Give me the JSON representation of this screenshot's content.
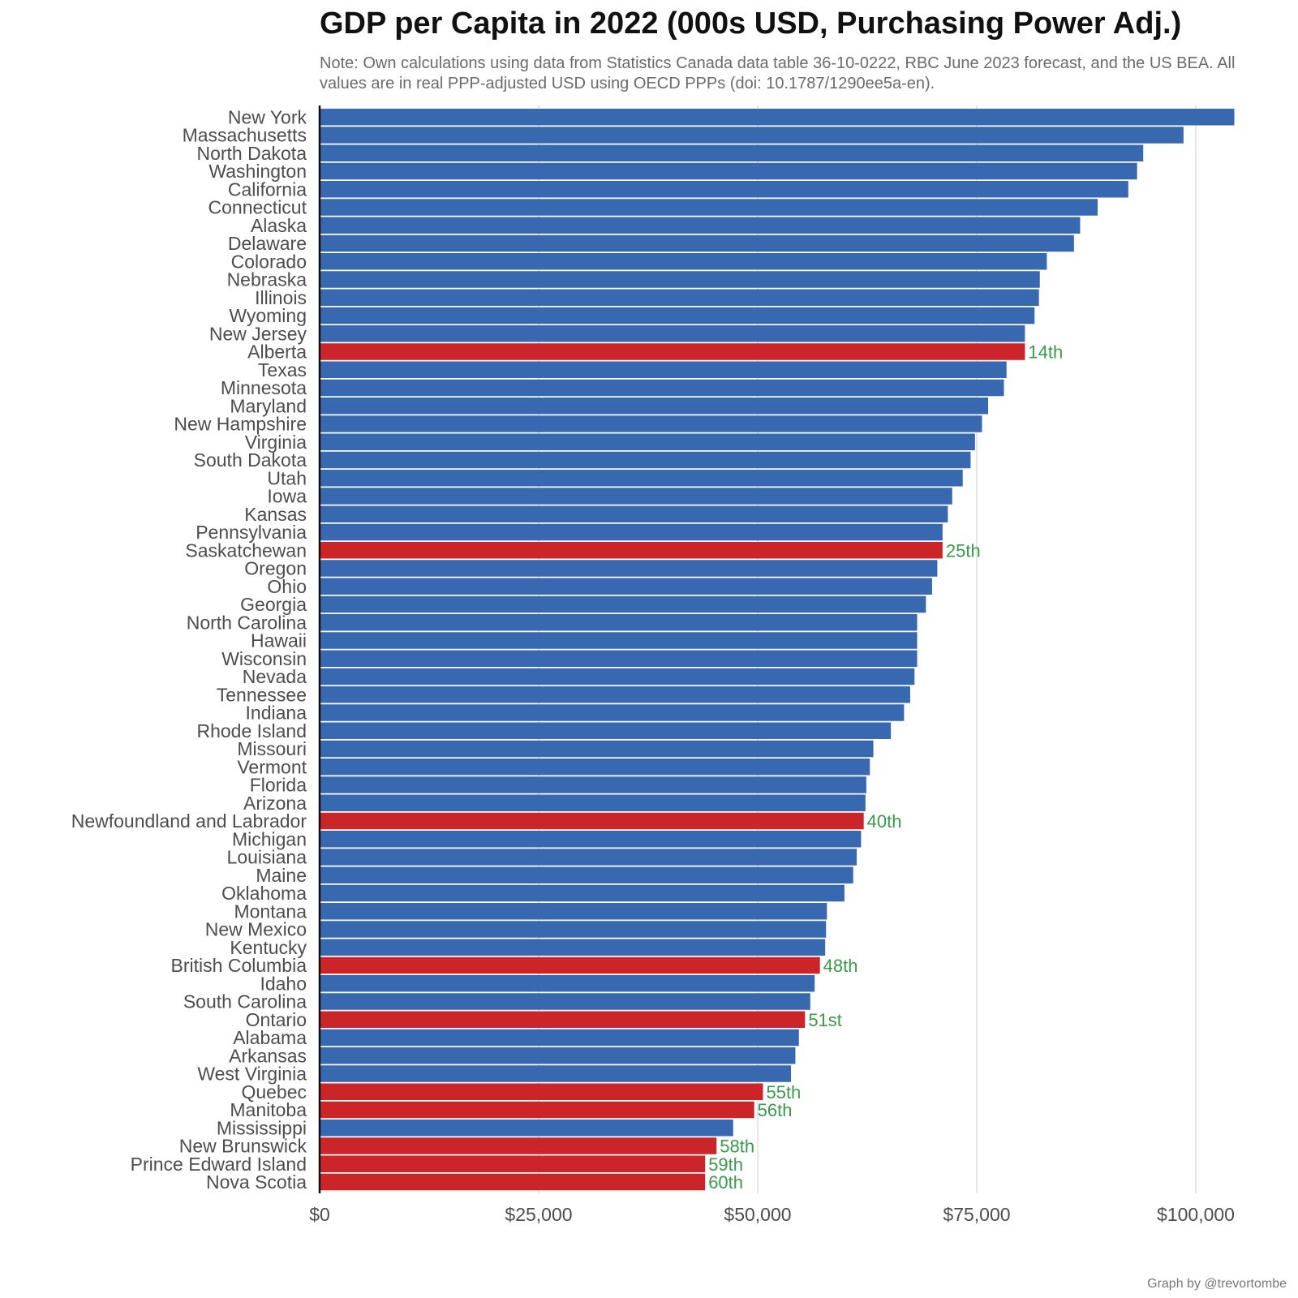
{
  "chart_data": {
    "type": "bar",
    "orientation": "horizontal",
    "title": "GDP per Capita in 2022 (000s USD, Purchasing Power Adj.)",
    "subtitle": "Note: Own calculations using data from Statistics Canada data table 36-10-0222, RBC June 2023 forecast, and the US BEA. All values are in real PPP-adjusted USD using OECD PPPs (doi: 10.1787/1290ee5a-en).",
    "credit": "Graph by @trevortombe",
    "xlim": [
      0,
      104000
    ],
    "ticks": [
      0,
      25000,
      50000,
      75000,
      100000
    ],
    "tick_labels": [
      "$0",
      "$25,000",
      "$50,000",
      "$75,000",
      "$100,000"
    ],
    "colors": {
      "us": "#3868b0",
      "canada": "#cc2529",
      "rank": "#3a9a4a"
    },
    "categories": [
      "New York",
      "Massachusetts",
      "North Dakota",
      "Washington",
      "California",
      "Connecticut",
      "Alaska",
      "Delaware",
      "Colorado",
      "Nebraska",
      "Illinois",
      "Wyoming",
      "New Jersey",
      "Alberta",
      "Texas",
      "Minnesota",
      "Maryland",
      "New Hampshire",
      "Virginia",
      "South Dakota",
      "Utah",
      "Iowa",
      "Kansas",
      "Pennsylvania",
      "Saskatchewan",
      "Oregon",
      "Ohio",
      "Georgia",
      "North Carolina",
      "Hawaii",
      "Wisconsin",
      "Nevada",
      "Tennessee",
      "Indiana",
      "Rhode Island",
      "Missouri",
      "Vermont",
      "Florida",
      "Arizona",
      "Newfoundland and Labrador",
      "Michigan",
      "Louisiana",
      "Maine",
      "Oklahoma",
      "Montana",
      "New Mexico",
      "Kentucky",
      "British Columbia",
      "Idaho",
      "South Carolina",
      "Ontario",
      "Alabama",
      "Arkansas",
      "West Virginia",
      "Quebec",
      "Manitoba",
      "Mississippi",
      "New Brunswick",
      "Prince Edward Island",
      "Nova Scotia"
    ],
    "values": [
      104400,
      98600,
      94000,
      93300,
      92300,
      88800,
      86800,
      86100,
      83000,
      82200,
      82100,
      81600,
      80500,
      80500,
      78400,
      78100,
      76300,
      75600,
      74800,
      74300,
      73400,
      72200,
      71700,
      71100,
      71100,
      70500,
      69900,
      69200,
      68200,
      68200,
      68200,
      67900,
      67400,
      66700,
      65200,
      63200,
      62800,
      62400,
      62300,
      62100,
      61800,
      61300,
      60900,
      59900,
      57900,
      57800,
      57700,
      57100,
      56500,
      56000,
      55400,
      54700,
      54300,
      53800,
      50600,
      49600,
      47200,
      45300,
      44000,
      44000
    ],
    "group": [
      "us",
      "us",
      "us",
      "us",
      "us",
      "us",
      "us",
      "us",
      "us",
      "us",
      "us",
      "us",
      "us",
      "canada",
      "us",
      "us",
      "us",
      "us",
      "us",
      "us",
      "us",
      "us",
      "us",
      "us",
      "canada",
      "us",
      "us",
      "us",
      "us",
      "us",
      "us",
      "us",
      "us",
      "us",
      "us",
      "us",
      "us",
      "us",
      "us",
      "canada",
      "us",
      "us",
      "us",
      "us",
      "us",
      "us",
      "us",
      "canada",
      "us",
      "us",
      "canada",
      "us",
      "us",
      "us",
      "canada",
      "canada",
      "us",
      "canada",
      "canada",
      "canada"
    ],
    "rank_labels": [
      "",
      "",
      "",
      "",
      "",
      "",
      "",
      "",
      "",
      "",
      "",
      "",
      "",
      "14th",
      "",
      "",
      "",
      "",
      "",
      "",
      "",
      "",
      "",
      "",
      "25th",
      "",
      "",
      "",
      "",
      "",
      "",
      "",
      "",
      "",
      "",
      "",
      "",
      "",
      "",
      "40th",
      "",
      "",
      "",
      "",
      "",
      "",
      "",
      "48th",
      "",
      "",
      "51st",
      "",
      "",
      "",
      "55th",
      "56th",
      "",
      "58th",
      "59th",
      "60th"
    ]
  }
}
